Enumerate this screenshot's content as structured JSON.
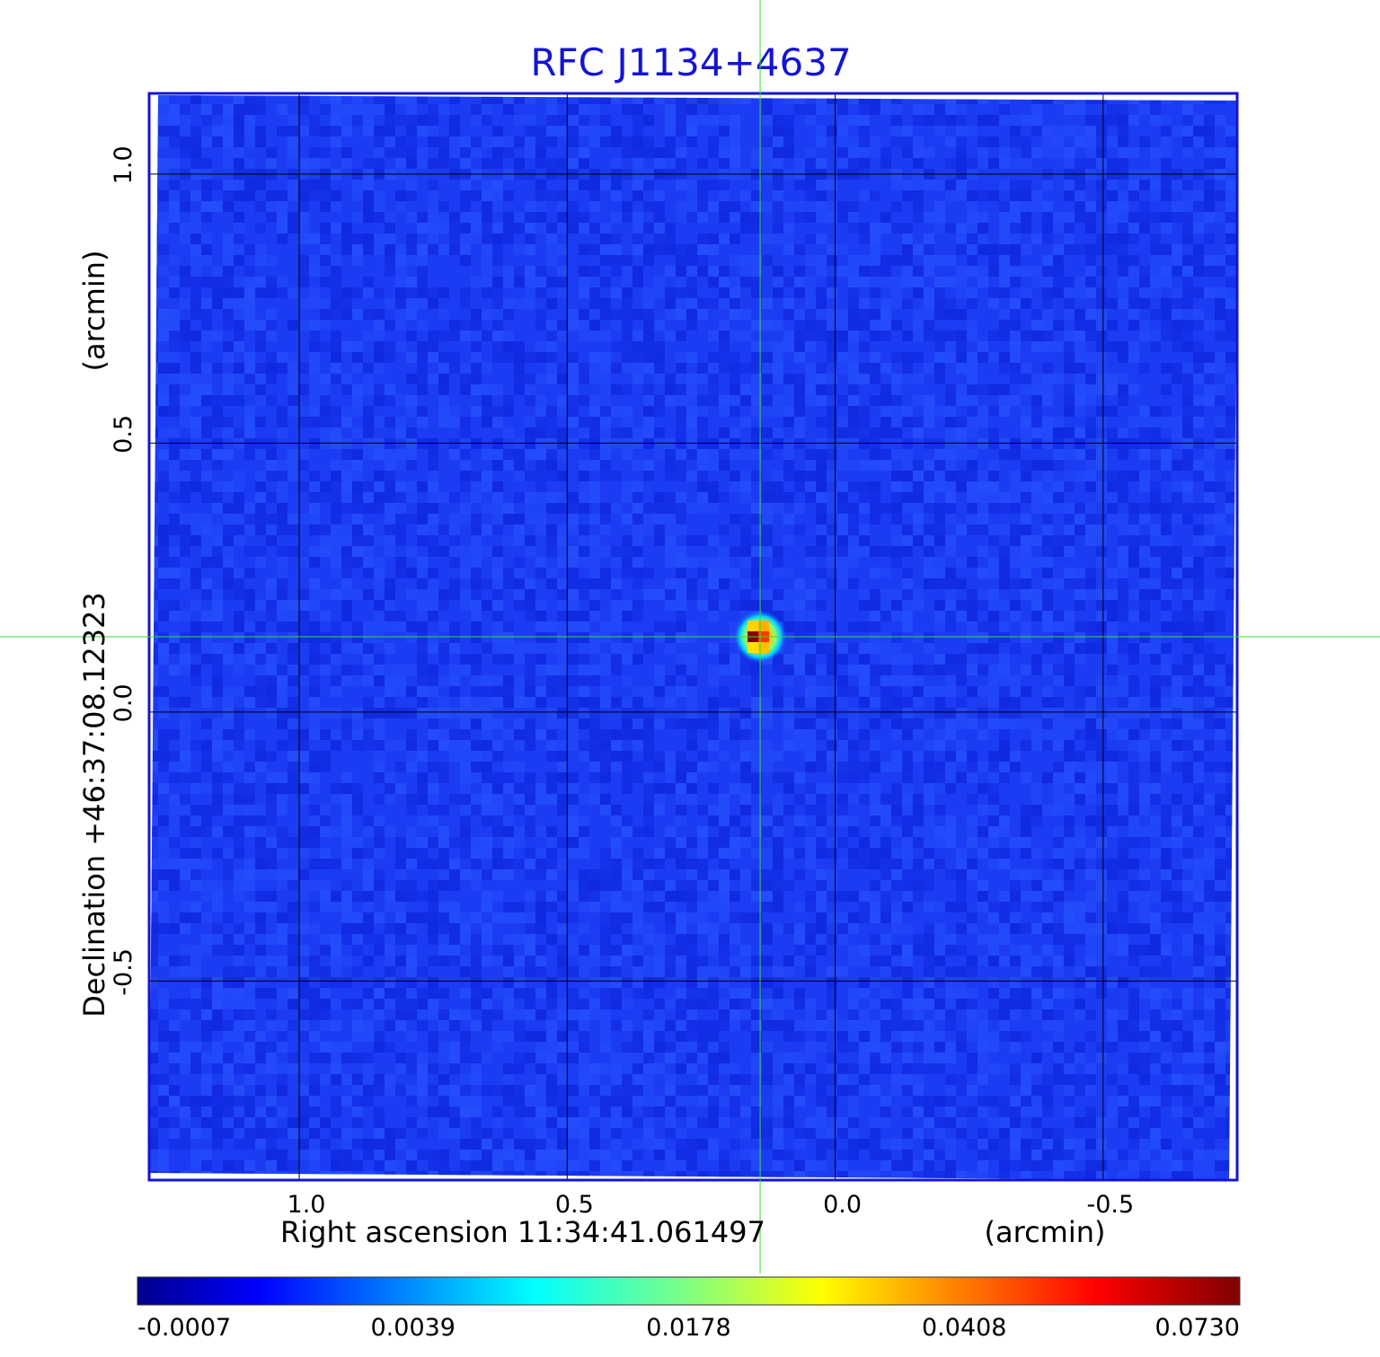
{
  "chart_data": {
    "type": "heatmap",
    "title": "RFC J1134+4637",
    "xlabel": "Right ascension  11:34:41.061497",
    "xunit": "(arcmin)",
    "ylabel": "Declination  +46:37:08.12323",
    "yunit": "(arcmin)",
    "xlim": [
      1.28,
      -0.75
    ],
    "ylim": [
      -0.87,
      1.15
    ],
    "x_ticks": [
      {
        "value": 1.0,
        "label": "1.0"
      },
      {
        "value": 0.5,
        "label": "0.5"
      },
      {
        "value": 0.0,
        "label": "0.0"
      },
      {
        "value": -0.5,
        "label": "-0.5"
      }
    ],
    "y_ticks": [
      {
        "value": 1.0,
        "label": "1.0"
      },
      {
        "value": 0.5,
        "label": "0.5"
      },
      {
        "value": 0.0,
        "label": "0.0"
      },
      {
        "value": -0.5,
        "label": "-0.5"
      }
    ],
    "grid": true,
    "source": {
      "x": 0.14,
      "y": 0.14,
      "peak": 0.073,
      "extent_arcmin": 0.08
    },
    "crosshair": {
      "x": 0.14,
      "y": 0.14,
      "color": "#33dd33"
    },
    "colorbar": {
      "colormap": "jet",
      "min": -0.0007,
      "max": 0.073,
      "labels": [
        "-0.0007",
        "0.0039",
        "0.0178",
        "0.0408",
        "0.0730"
      ]
    },
    "colors": {
      "background_field": "#1c3cf4",
      "frame": "#1414d4",
      "title": "#1414d4",
      "grid": "#000000"
    }
  }
}
